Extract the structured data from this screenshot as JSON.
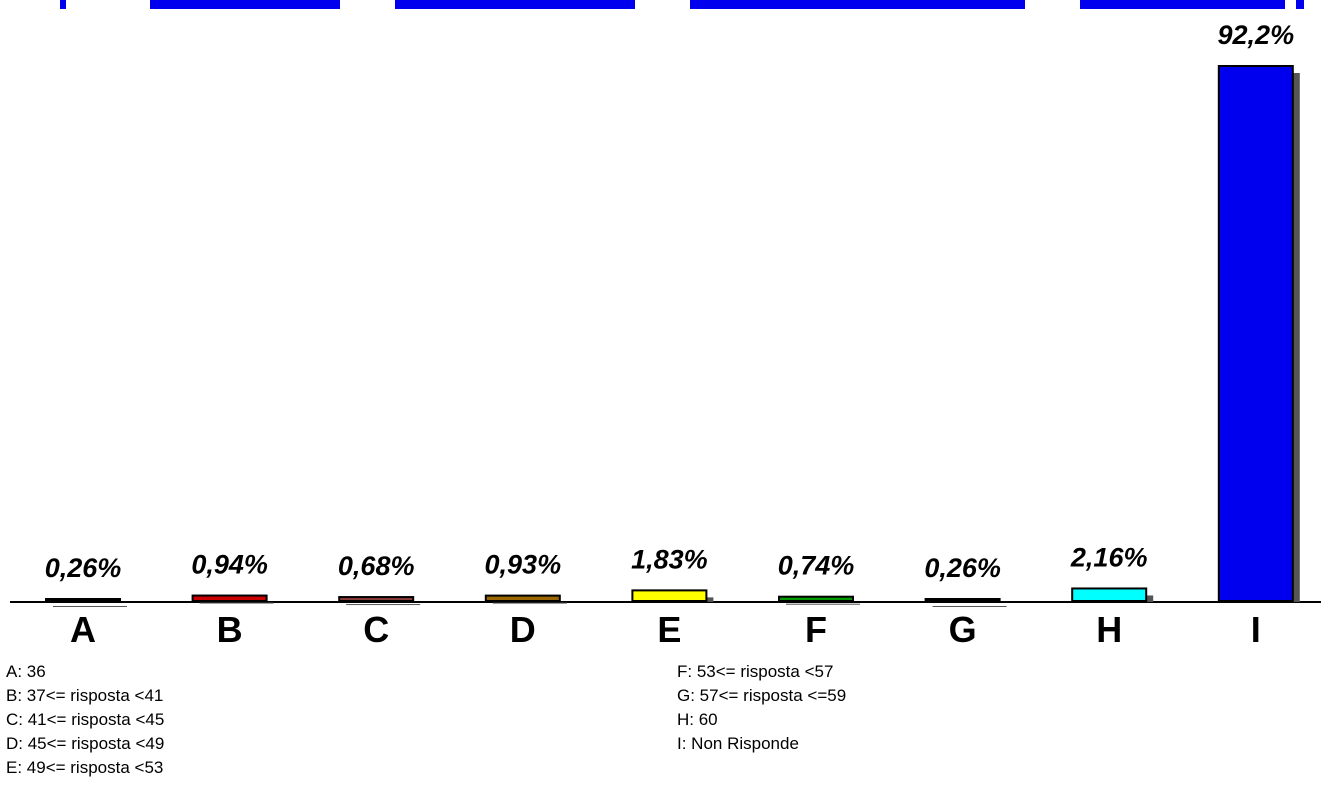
{
  "chart_data": {
    "type": "bar",
    "categories": [
      "A",
      "B",
      "C",
      "D",
      "E",
      "F",
      "G",
      "H",
      "I"
    ],
    "values": [
      0.26,
      0.94,
      0.68,
      0.93,
      1.83,
      0.74,
      0.26,
      2.16,
      92.2
    ],
    "value_labels": [
      "0,26%",
      "0,94%",
      "0,68%",
      "0,93%",
      "1,83%",
      "0,74%",
      "0,26%",
      "2,16%",
      "92,2%"
    ],
    "colors": [
      "#000000",
      "#cc0000",
      "#8b3a3a",
      "#996600",
      "#ffff00",
      "#009900",
      "#000000",
      "#00ffff",
      "#0000ee"
    ],
    "ylim": [
      0,
      92.2
    ],
    "grid": false,
    "legend": [
      "A: 36",
      "B: 37<= risposta <41",
      "C: 41<= risposta <45",
      "D: 45<= risposta <49",
      "E: 49<= risposta <53",
      "F: 53<= risposta <57",
      "G: 57<= risposta <=59",
      "H: 60",
      "I: Non Risponde"
    ],
    "title_color": "#0000ee"
  }
}
